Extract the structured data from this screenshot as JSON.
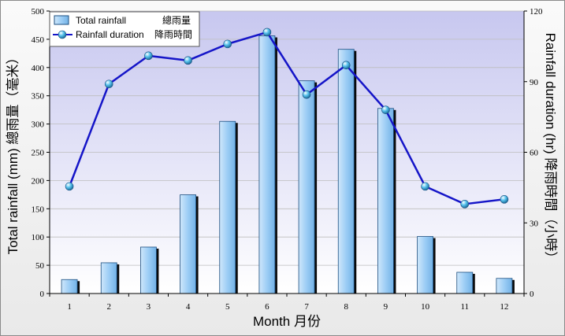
{
  "chart_data": {
    "type": "bar+line",
    "categories": [
      "1",
      "2",
      "3",
      "4",
      "5",
      "6",
      "7",
      "8",
      "9",
      "10",
      "11",
      "12"
    ],
    "series": [
      {
        "name": "Total rainfall",
        "name_zh": "總雨量",
        "type": "bar",
        "axis": "left",
        "values": [
          24.7,
          54.4,
          82.2,
          174.7,
          304.7,
          456.1,
          376.5,
          432.2,
          327.6,
          100.9,
          37.6,
          26.8
        ]
      },
      {
        "name": "Rainfall duration",
        "name_zh": "降雨時間",
        "type": "line",
        "axis": "right",
        "values": [
          45.5,
          89,
          101,
          99,
          106,
          111,
          84.5,
          97,
          78,
          45.5,
          38,
          40
        ]
      }
    ],
    "xlabel": "Month 月份",
    "ylabel_left": "Total rainfall (mm) 總雨量（毫米）",
    "ylabel_right": "Rainfall duration (hr) 降雨時間（小時）",
    "ylim_left": [
      0,
      500
    ],
    "yticks_left": [
      0,
      50,
      100,
      150,
      200,
      250,
      300,
      350,
      400,
      450,
      500
    ],
    "ylim_right": [
      0,
      120
    ],
    "yticks_right": [
      0,
      30,
      60,
      90,
      120
    ],
    "grid": true,
    "legend_position": "top-left",
    "colors": {
      "bar_fill": "#9ccdf5",
      "bar_stroke": "#1d4f80",
      "bar_shadow": "#0a0a0a",
      "line": "#1515c8",
      "marker": "#3aa7d8",
      "plot_bg_top": "#c7c7ef",
      "plot_bg_bottom": "#ffffff"
    }
  }
}
